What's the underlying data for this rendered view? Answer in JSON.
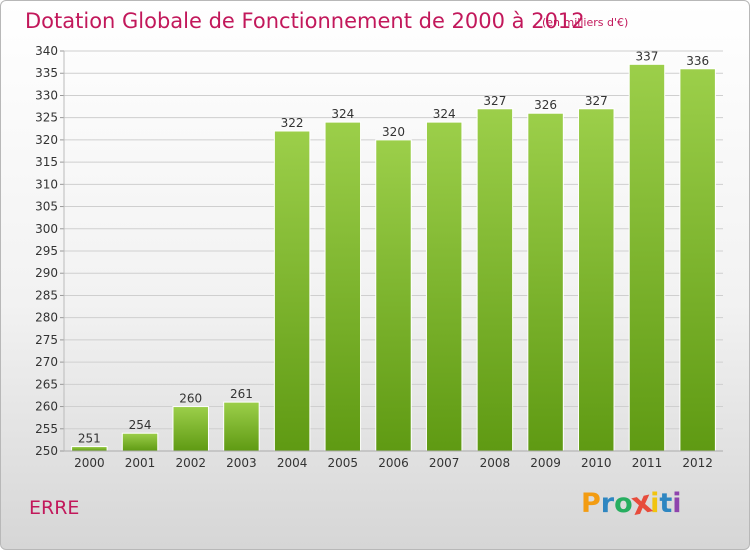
{
  "title": "Dotation Globale de Fonctionnement de 2000 à 2012",
  "subtitle": "(en milliers d'€)",
  "commune": "ERRE",
  "logo": {
    "letters": [
      "P",
      "r",
      "o",
      "x",
      "i",
      "t",
      "i"
    ],
    "colors": [
      "#f39c12",
      "#2e86c1",
      "#27ae60",
      "#e74c3c",
      "#f1c40f",
      "#2e86c1",
      "#8e44ad"
    ]
  },
  "colors": {
    "bar_top": "#9ccf4a",
    "bar_bottom": "#5f9a13",
    "title": "#c2185b"
  },
  "chart_data": {
    "type": "bar",
    "categories": [
      "2000",
      "2001",
      "2002",
      "2003",
      "2004",
      "2005",
      "2006",
      "2007",
      "2008",
      "2009",
      "2010",
      "2011",
      "2012"
    ],
    "values": [
      251,
      254,
      260,
      261,
      322,
      324,
      320,
      324,
      327,
      326,
      327,
      337,
      336
    ],
    "ylim": [
      250,
      340
    ],
    "yticks": [
      250,
      255,
      260,
      265,
      270,
      275,
      280,
      285,
      290,
      295,
      300,
      305,
      310,
      315,
      320,
      325,
      330,
      335,
      340
    ],
    "grid": true
  }
}
